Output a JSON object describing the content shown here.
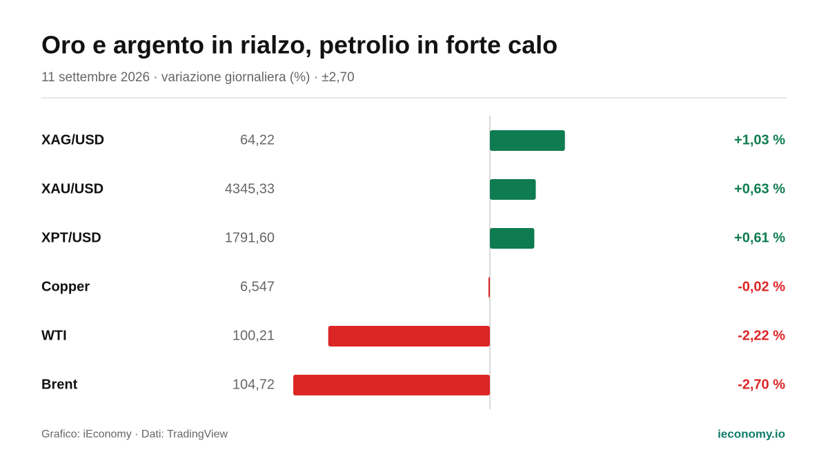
{
  "chart_data": {
    "type": "bar",
    "title": "Oro e argento in rialzo, petrolio in forte calo",
    "subtitle": "11 settembre 2026 · variazione giornaliera (%) · ±2,70",
    "categories": [
      "XAG/USD",
      "XAU/USD",
      "XPT/USD",
      "Copper",
      "WTI",
      "Brent"
    ],
    "prices": [
      "64,22",
      "4345,33",
      "1791,60",
      "6,547",
      "100,21",
      "104,72"
    ],
    "values": [
      1.03,
      0.63,
      0.61,
      -0.02,
      -2.22,
      -2.7
    ],
    "value_labels": [
      "+1,03 %",
      "+0,63 %",
      "+0,61 %",
      "-0,02 %",
      "-2,22 %",
      "-2,70 %"
    ],
    "xlim": [
      -2.7,
      2.7
    ],
    "positive_color": "#0e7c50",
    "negative_color": "#dc2626",
    "source": "Grafico: iEconomy · Dati: TradingView",
    "brand": "ieconomy.io"
  }
}
